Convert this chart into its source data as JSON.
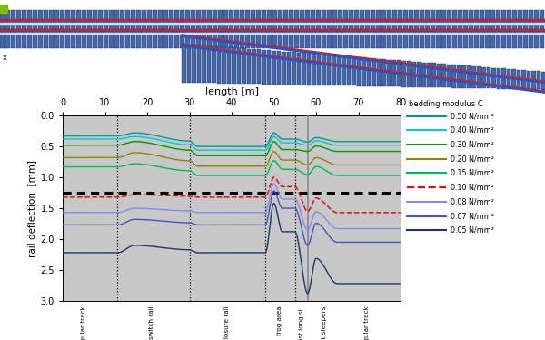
{
  "xlabel": "length [m]",
  "ylabel": "rail deflection  [mm]",
  "xlim": [
    0,
    80
  ],
  "ylim": [
    3.0,
    0.0
  ],
  "yticks": [
    0.0,
    0.5,
    1.0,
    1.5,
    2.0,
    2.5,
    3.0
  ],
  "xticks": [
    0,
    10,
    20,
    30,
    40,
    50,
    60,
    70,
    80
  ],
  "background_color": "#c8c8c8",
  "dashed_line_y": 1.25,
  "vertical_dashed_lines": [
    13,
    30,
    48,
    55
  ],
  "vertical_solid_line": 58,
  "zone_labels": [
    {
      "x": 5,
      "label": "regular track"
    },
    {
      "x": 21,
      "label": "switch rail"
    },
    {
      "x": 39,
      "label": "closure rail"
    },
    {
      "x": 51.5,
      "label": "frog area"
    },
    {
      "x": 56.5,
      "label": "last long sl."
    },
    {
      "x": 62,
      "label": "short sleepers"
    },
    {
      "x": 72,
      "label": "regular track"
    }
  ],
  "legend_title": "bedding modulus C",
  "series": [
    {
      "label": "0.50 N/mm²",
      "color": "#009999",
      "style": "solid",
      "lw": 1.0,
      "y_left": 0.33,
      "y_switch": 0.28,
      "y_closure": 0.5,
      "y_frog_peak": 0.28,
      "y_frog_end": 0.38,
      "y_after_sl": 0.43,
      "y_right": 0.42
    },
    {
      "label": "0.40 N/mm²",
      "color": "#00cccc",
      "style": "solid",
      "lw": 1.0,
      "y_left": 0.38,
      "y_switch": 0.34,
      "y_closure": 0.56,
      "y_frog_peak": 0.34,
      "y_frog_end": 0.44,
      "y_after_sl": 0.48,
      "y_right": 0.48
    },
    {
      "label": "0.30 N/mm²",
      "color": "#009900",
      "style": "solid",
      "lw": 1.0,
      "y_left": 0.48,
      "y_switch": 0.42,
      "y_closure": 0.65,
      "y_frog_peak": 0.42,
      "y_frog_end": 0.55,
      "y_after_sl": 0.58,
      "y_right": 0.58
    },
    {
      "label": "0.20 N/mm²",
      "color": "#888800",
      "style": "solid",
      "lw": 1.0,
      "y_left": 0.68,
      "y_switch": 0.6,
      "y_closure": 0.82,
      "y_frog_peak": 0.58,
      "y_frog_end": 0.72,
      "y_after_sl": 0.8,
      "y_right": 0.8
    },
    {
      "label": "0.15 N/mm²",
      "color": "#00bb55",
      "style": "solid",
      "lw": 1.0,
      "y_left": 0.83,
      "y_switch": 0.78,
      "y_closure": 0.97,
      "y_frog_peak": 0.73,
      "y_frog_end": 0.87,
      "y_after_sl": 0.96,
      "y_right": 0.97
    },
    {
      "label": "0.10 N/mm²",
      "color": "#dd1111",
      "style": "dashed",
      "lw": 1.1,
      "y_left": 1.32,
      "y_switch": 1.28,
      "y_closure": 1.32,
      "y_frog_peak": 1.0,
      "y_frog_end": 1.15,
      "y_after_sl": 1.55,
      "y_right": 1.57
    },
    {
      "label": "0.08 N/mm²",
      "color": "#8888ee",
      "style": "solid",
      "lw": 1.0,
      "y_left": 1.57,
      "y_switch": 1.5,
      "y_closure": 1.57,
      "y_frog_peak": 1.1,
      "y_frog_end": 1.35,
      "y_after_sl": 1.85,
      "y_right": 1.83
    },
    {
      "label": "0.07 N/mm²",
      "color": "#4455bb",
      "style": "solid",
      "lw": 1.0,
      "y_left": 1.77,
      "y_switch": 1.68,
      "y_closure": 1.77,
      "y_frog_peak": 1.22,
      "y_frog_end": 1.5,
      "y_after_sl": 2.1,
      "y_right": 2.05
    },
    {
      "label": "0.05 N/mm²",
      "color": "#223366",
      "style": "solid",
      "lw": 1.0,
      "y_left": 2.22,
      "y_switch": 2.1,
      "y_closure": 2.22,
      "y_frog_peak": 1.42,
      "y_frog_end": 1.88,
      "y_after_sl": 2.88,
      "y_right": 2.72
    }
  ]
}
